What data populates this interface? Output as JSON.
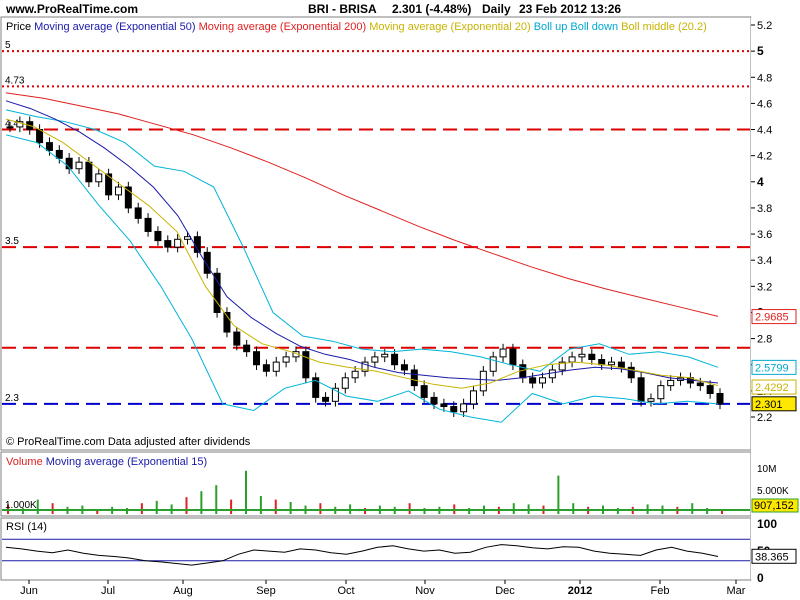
{
  "header": {
    "site": "www.ProRealTime.com",
    "symbol": "BRI - BRISA",
    "quote": "2.301 (-4.48%)",
    "period": "Daily",
    "datetime": "23 Feb 2012 13:26"
  },
  "legend_items": [
    {
      "text": "Price",
      "color": "#000000"
    },
    {
      "text": "Moving average (Exponential 50)",
      "color": "#1a1aa8"
    },
    {
      "text": "Moving average (Exponential 200)",
      "color": "#e02020"
    },
    {
      "text": "Moving average (Exponential 20)",
      "color": "#c8b400"
    },
    {
      "text": "Boll up",
      "color": "#00a8d0"
    },
    {
      "text": "Boll down",
      "color": "#00a8d0"
    },
    {
      "text": "Boll middle (20.2)",
      "color": "#c8b400"
    }
  ],
  "footer_note": "© ProRealTime.com  Data adjusted after dividends",
  "volume_legend": [
    {
      "text": "Volume",
      "color": "#e02020"
    },
    {
      "text": "Moving average (Exponential 15)",
      "color": "#1a1aa8"
    }
  ],
  "rsi_legend": "RSI (14)",
  "chart_data": {
    "type": "line",
    "x_ticks": [
      "Jun",
      "Jul",
      "Aug",
      "Sep",
      "Oct",
      "Nov",
      "Dec",
      "2012",
      "Jan",
      "Feb",
      "Mar"
    ],
    "price_axis": {
      "ticks": [
        "5.2",
        "5",
        "4.8",
        "4.6",
        "4.4",
        "4.2",
        "4",
        "3.8",
        "3.6",
        "3.4",
        "3.2",
        "3",
        "2.8",
        "2.6",
        "2.4",
        "2.2"
      ],
      "ylim": [
        2.1,
        5.25
      ]
    },
    "horizontal_levels": [
      {
        "value": 5.0,
        "label": "5",
        "style": "dotted",
        "color": "#dd0000"
      },
      {
        "value": 4.73,
        "label": "4.73",
        "style": "dotted",
        "color": "#dd0000"
      },
      {
        "value": 4.4,
        "label": "4.4",
        "style": "dashed",
        "color": "#dd0000"
      },
      {
        "value": 3.5,
        "label": "3.5",
        "style": "dashed",
        "color": "#dd0000"
      },
      {
        "value": 2.73,
        "label": "",
        "style": "dashed",
        "color": "#dd0000"
      },
      {
        "value": 2.3,
        "label": "2.3",
        "style": "dashed",
        "color": "#0000cc"
      }
    ],
    "value_badges": [
      {
        "value": 2.9685,
        "text": "2.9685",
        "color": "#e02020"
      },
      {
        "value": 2.5799,
        "text": "2.5799",
        "color": "#00a8d0"
      },
      {
        "value": 2.4292,
        "text": "2.4292",
        "color": "#c8b400"
      },
      {
        "value": 2.301,
        "text": "2.301",
        "color": "#000000"
      }
    ],
    "price_close": [
      4.42,
      4.46,
      4.4,
      4.3,
      4.24,
      4.18,
      4.1,
      4.15,
      4.0,
      4.06,
      3.9,
      3.96,
      3.8,
      3.72,
      3.62,
      3.55,
      3.5,
      3.56,
      3.58,
      3.46,
      3.3,
      3.0,
      2.85,
      2.75,
      2.7,
      2.6,
      2.55,
      2.62,
      2.66,
      2.7,
      2.5,
      2.35,
      2.32,
      2.42,
      2.5,
      2.55,
      2.62,
      2.66,
      2.68,
      2.6,
      2.56,
      2.44,
      2.35,
      2.3,
      2.28,
      2.24,
      2.3,
      2.4,
      2.55,
      2.66,
      2.72,
      2.6,
      2.5,
      2.46,
      2.5,
      2.56,
      2.62,
      2.66,
      2.68,
      2.64,
      2.6,
      2.62,
      2.58,
      2.5,
      2.32,
      2.34,
      2.44,
      2.48,
      2.5,
      2.46,
      2.44,
      2.38,
      2.3
    ],
    "ema200": [
      4.68,
      4.64,
      4.58,
      4.52,
      4.44,
      4.36,
      4.26,
      4.15,
      4.03,
      3.9,
      3.78,
      3.66,
      3.55,
      3.45,
      3.35,
      3.26,
      3.18,
      3.11,
      3.04,
      2.97
    ],
    "ema50": [
      4.62,
      4.56,
      4.48,
      4.38,
      4.26,
      4.12,
      3.96,
      3.74,
      3.42,
      3.12,
      2.96,
      2.84,
      2.74,
      2.68,
      2.64,
      2.58,
      2.54,
      2.52,
      2.5,
      2.49,
      2.48,
      2.5,
      2.53,
      2.56,
      2.58,
      2.57,
      2.54,
      2.5,
      2.48,
      2.46
    ],
    "ema20": [
      4.48,
      4.42,
      4.3,
      4.14,
      3.98,
      3.82,
      3.62,
      3.2,
      2.9,
      2.76,
      2.7,
      2.62,
      2.58,
      2.55,
      2.5,
      2.45,
      2.42,
      2.46,
      2.55,
      2.6,
      2.62,
      2.6,
      2.56,
      2.52,
      2.5,
      2.44
    ],
    "boll_up": [
      4.55,
      4.5,
      4.46,
      4.4,
      4.3,
      4.12,
      4.08,
      3.96,
      3.5,
      3.0,
      2.82,
      2.78,
      2.72,
      2.7,
      2.72,
      2.7,
      2.66,
      2.6,
      2.55,
      2.72,
      2.76,
      2.68,
      2.7,
      2.66,
      2.58
    ],
    "boll_down": [
      4.36,
      4.3,
      4.12,
      3.82,
      3.55,
      3.2,
      2.8,
      2.3,
      2.25,
      2.42,
      2.48,
      2.36,
      2.32,
      2.4,
      2.26,
      2.2,
      2.16,
      2.38,
      2.3,
      2.36,
      2.34,
      2.3,
      2.32,
      2.3
    ],
    "volume_axis": {
      "ticks": [
        "10M",
        "5.000K",
        "1.000K"
      ]
    },
    "volume_badge": "907,152",
    "volume_label": "1.000K",
    "volume_values": [
      0.8,
      0.5,
      1.2,
      0.9,
      0.6,
      0.7,
      0.4,
      0.6,
      0.5,
      0.9,
      1.1,
      0.8,
      1.4,
      1.9,
      2.4,
      1.2,
      3.6,
      1.5,
      1.2,
      1.0,
      0.7,
      0.9,
      0.6,
      0.8,
      0.5,
      0.7,
      0.6,
      0.9,
      0.5,
      0.6,
      0.8,
      0.5,
      0.7,
      0.6,
      0.9,
      0.8,
      0.7,
      3.2,
      0.9,
      0.6,
      0.7,
      0.5,
      0.6,
      0.8,
      0.7,
      0.6,
      0.9,
      0.5,
      0.4
    ],
    "rsi_axis": {
      "ticks": [
        "100",
        "50",
        "0"
      ]
    },
    "rsi_badge": "38.365",
    "rsi_values": [
      55,
      52,
      48,
      45,
      50,
      44,
      40,
      38,
      35,
      30,
      28,
      25,
      22,
      26,
      30,
      42,
      50,
      48,
      46,
      52,
      50,
      45,
      42,
      48,
      55,
      58,
      52,
      48,
      50,
      44,
      46,
      55,
      60,
      58,
      54,
      52,
      56,
      55,
      48,
      44,
      42,
      40,
      50,
      55,
      48,
      44,
      38
    ]
  }
}
